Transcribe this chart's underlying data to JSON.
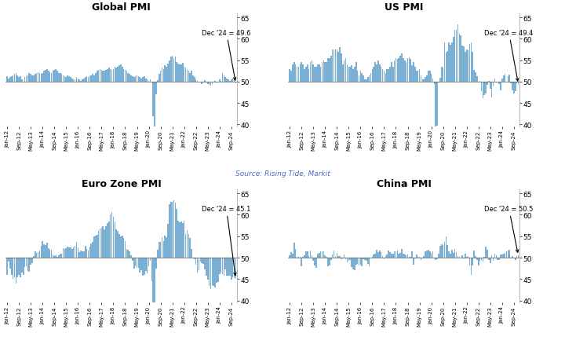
{
  "titles": [
    "Global PMI",
    "US PMI",
    "Euro Zone PMI",
    "China PMI"
  ],
  "annotations": [
    "Dec '24 = 49.6",
    "Dec '24 = 49.4",
    "Dec '24 = 45.1",
    "Dec '24 = 50.5"
  ],
  "source_text": "Source: Rising Tide, Markit",
  "bar_color": "#7BAFD4",
  "baseline": 50,
  "ylim": [
    39.5,
    66
  ],
  "yticks": [
    40,
    45,
    50,
    55,
    60,
    65
  ],
  "tick_labels": [
    "Jan-12",
    "Sep-12",
    "May-13",
    "Jan-14",
    "Sep-14",
    "May-15",
    "Jan-16",
    "Sep-16",
    "May-17",
    "Jan-18",
    "Sep-18",
    "May-19",
    "Jan-20",
    "Sep-20",
    "May-21",
    "Jan-22",
    "Sep-22",
    "May-23",
    "Jan-24",
    "Sep-24"
  ],
  "global_pmi": [
    51.2,
    50.8,
    51.0,
    51.2,
    51.5,
    51.8,
    52.0,
    51.5,
    51.0,
    51.2,
    50.5,
    50.0,
    51.0,
    51.2,
    51.5,
    52.0,
    51.8,
    51.5,
    51.5,
    51.8,
    52.0,
    52.2,
    52.0,
    51.8,
    52.0,
    52.5,
    52.8,
    53.0,
    52.5,
    52.2,
    52.0,
    52.5,
    52.8,
    53.0,
    52.5,
    52.0,
    52.0,
    51.8,
    51.5,
    51.2,
    51.0,
    51.5,
    51.2,
    51.0,
    50.8,
    50.5,
    50.5,
    51.0,
    50.8,
    50.5,
    50.2,
    50.5,
    50.8,
    51.0,
    51.2,
    51.0,
    51.2,
    51.5,
    51.8,
    51.5,
    52.0,
    52.5,
    52.8,
    53.0,
    52.8,
    52.5,
    52.5,
    52.8,
    53.0,
    53.2,
    53.0,
    52.8,
    53.0,
    53.5,
    53.2,
    53.5,
    53.8,
    54.0,
    53.5,
    53.0,
    52.8,
    52.5,
    52.0,
    51.8,
    51.5,
    51.2,
    51.0,
    51.2,
    51.5,
    51.2,
    51.0,
    50.8,
    51.0,
    51.2,
    50.8,
    50.5,
    50.2,
    50.5,
    50.0,
    42.0,
    39.5,
    47.0,
    50.3,
    51.8,
    52.5,
    53.2,
    53.0,
    53.8,
    53.5,
    54.2,
    55.0,
    55.8,
    56.0,
    55.5,
    55.8,
    54.5,
    54.2,
    54.0,
    54.0,
    54.3,
    53.5,
    53.2,
    52.8,
    52.5,
    52.0,
    52.5,
    51.5,
    51.0,
    50.5,
    50.2,
    50.0,
    49.8,
    49.5,
    49.8,
    50.3,
    49.8,
    49.5,
    49.2,
    49.0,
    49.5,
    50.0,
    50.2,
    49.8,
    50.0,
    50.5,
    50.2,
    52.0,
    51.5,
    51.0,
    50.8,
    50.5,
    50.2,
    50.5,
    50.8,
    50.5,
    49.6
  ],
  "us_pmi": [
    53.0,
    52.5,
    54.0,
    54.5,
    54.0,
    53.5,
    53.5,
    54.0,
    54.5,
    54.0,
    53.0,
    53.5,
    54.0,
    53.0,
    54.5,
    55.0,
    54.0,
    53.5,
    53.5,
    54.0,
    54.0,
    53.5,
    54.5,
    55.0,
    54.5,
    54.5,
    55.5,
    55.5,
    56.0,
    57.5,
    57.5,
    57.5,
    57.5,
    57.0,
    58.0,
    56.5,
    54.0,
    55.0,
    55.5,
    54.0,
    53.5,
    53.5,
    53.8,
    53.0,
    53.5,
    54.5,
    52.5,
    51.5,
    52.5,
    52.0,
    51.5,
    50.5,
    50.5,
    51.0,
    51.5,
    52.0,
    53.0,
    53.5,
    54.5,
    54.0,
    55.0,
    54.0,
    53.5,
    53.0,
    52.5,
    52.0,
    53.0,
    53.0,
    53.5,
    54.5,
    53.5,
    55.0,
    55.5,
    55.3,
    55.5,
    56.0,
    56.5,
    55.5,
    55.0,
    54.5,
    55.5,
    55.7,
    55.3,
    53.8,
    54.5,
    53.5,
    52.5,
    52.5,
    53.0,
    51.5,
    50.5,
    50.5,
    51.0,
    51.5,
    52.5,
    52.5,
    51.9,
    50.7,
    49.5,
    36.1,
    39.8,
    49.8,
    50.9,
    53.5,
    53.2,
    59.2,
    56.7,
    57.1,
    59.2,
    58.6,
    59.1,
    60.5,
    62.1,
    62.0,
    63.4,
    61.1,
    60.7,
    58.4,
    58.3,
    57.0,
    57.5,
    57.3,
    58.8,
    59.2,
    57.0,
    52.7,
    52.2,
    51.3,
    49.9,
    50.2,
    47.7,
    46.2,
    46.8,
    47.3,
    49.3,
    50.2,
    48.4,
    46.3,
    49.0,
    50.8,
    49.8,
    50.0,
    49.4,
    47.9,
    50.7,
    51.5,
    51.9,
    50.0,
    51.3,
    51.6,
    49.6,
    48.0,
    47.3,
    47.8,
    49.7,
    49.4
  ],
  "euro_pmi": [
    46.0,
    49.0,
    47.5,
    46.0,
    45.0,
    45.5,
    44.0,
    45.5,
    46.0,
    45.5,
    46.5,
    46.0,
    47.8,
    47.9,
    46.8,
    46.7,
    48.3,
    48.8,
    50.3,
    51.4,
    51.1,
    51.3,
    51.6,
    52.7,
    53.9,
    53.2,
    53.0,
    53.4,
    52.2,
    51.8,
    51.8,
    50.7,
    50.3,
    50.6,
    50.1,
    50.6,
    51.0,
    51.0,
    52.2,
    52.0,
    52.2,
    52.5,
    52.4,
    52.3,
    52.0,
    52.3,
    52.8,
    53.6,
    52.3,
    51.2,
    51.6,
    51.5,
    51.5,
    52.8,
    52.0,
    51.7,
    52.6,
    53.3,
    53.7,
    54.9,
    55.2,
    55.4,
    56.2,
    56.7,
    57.0,
    57.4,
    56.6,
    57.4,
    58.1,
    58.5,
    60.1,
    60.6,
    59.6,
    58.5,
    56.6,
    56.2,
    55.5,
    54.9,
    55.1,
    54.6,
    53.8,
    52.0,
    51.8,
    51.4,
    50.5,
    49.3,
    47.5,
    47.9,
    47.7,
    47.6,
    46.5,
    47.0,
    45.7,
    45.9,
    46.9,
    46.3,
    47.9,
    49.2,
    44.5,
    33.4,
    39.4,
    47.4,
    51.8,
    53.7,
    53.7,
    54.8,
    53.8,
    55.2,
    54.8,
    57.9,
    62.5,
    63.0,
    63.1,
    63.4,
    62.8,
    61.4,
    58.6,
    58.3,
    58.4,
    58.0,
    58.7,
    55.5,
    56.5,
    55.5,
    54.6,
    52.0,
    49.8,
    49.6,
    48.4,
    46.6,
    47.1,
    49.0,
    48.8,
    48.5,
    47.3,
    45.8,
    44.8,
    43.4,
    42.7,
    43.5,
    43.4,
    43.1,
    44.2,
    44.4,
    46.1,
    46.5,
    46.1,
    45.7,
    47.3,
    45.8,
    45.8,
    45.8,
    44.8,
    45.4,
    45.2,
    45.1
  ],
  "china_pmi": [
    50.5,
    51.2,
    51.0,
    53.4,
    52.0,
    50.2,
    50.1,
    50.2,
    47.9,
    50.2,
    50.6,
    51.5,
    51.5,
    50.4,
    51.6,
    50.6,
    49.2,
    48.2,
    47.7,
    51.0,
    51.1,
    51.4,
    51.4,
    51.5,
    50.5,
    50.2,
    48.0,
    48.1,
    49.4,
    50.7,
    51.7,
    50.2,
    51.1,
    50.4,
    50.3,
    49.6,
    49.8,
    50.7,
    49.6,
    48.9,
    49.2,
    49.4,
    47.8,
    47.3,
    47.0,
    48.3,
    48.6,
    48.2,
    48.4,
    48.0,
    49.7,
    49.4,
    49.2,
    48.6,
    47.9,
    50.0,
    50.1,
    50.8,
    50.9,
    51.9,
    51.2,
    51.7,
    51.2,
    50.3,
    49.6,
    50.4,
    50.8,
    51.6,
    51.2,
    51.0,
    51.0,
    51.5,
    51.5,
    51.6,
    51.0,
    51.1,
    52.0,
    51.0,
    50.8,
    50.6,
    50.8,
    50.1,
    50.2,
    51.5,
    48.3,
    49.9,
    50.8,
    50.2,
    50.2,
    49.4,
    49.9,
    50.4,
    51.4,
    51.7,
    51.8,
    51.5,
    51.1,
    51.5,
    49.9,
    49.4,
    49.6,
    50.9,
    52.8,
    53.1,
    53.0,
    53.6,
    54.9,
    53.0,
    51.5,
    50.9,
    51.9,
    51.1,
    52.0,
    51.3,
    50.3,
    50.1,
    50.0,
    50.6,
    49.9,
    50.9,
    50.1,
    50.4,
    48.1,
    46.0,
    48.1,
    51.7,
    50.4,
    49.5,
    48.1,
    49.2,
    49.4,
    49.0,
    50.1,
    52.6,
    51.9,
    49.5,
    48.8,
    50.5,
    49.2,
    51.0,
    50.6,
    49.5,
    49.4,
    50.8,
    50.8,
    50.9,
    51.1,
    51.4,
    51.7,
    51.8,
    49.8,
    50.4,
    49.8,
    49.5,
    50.3,
    50.5
  ]
}
